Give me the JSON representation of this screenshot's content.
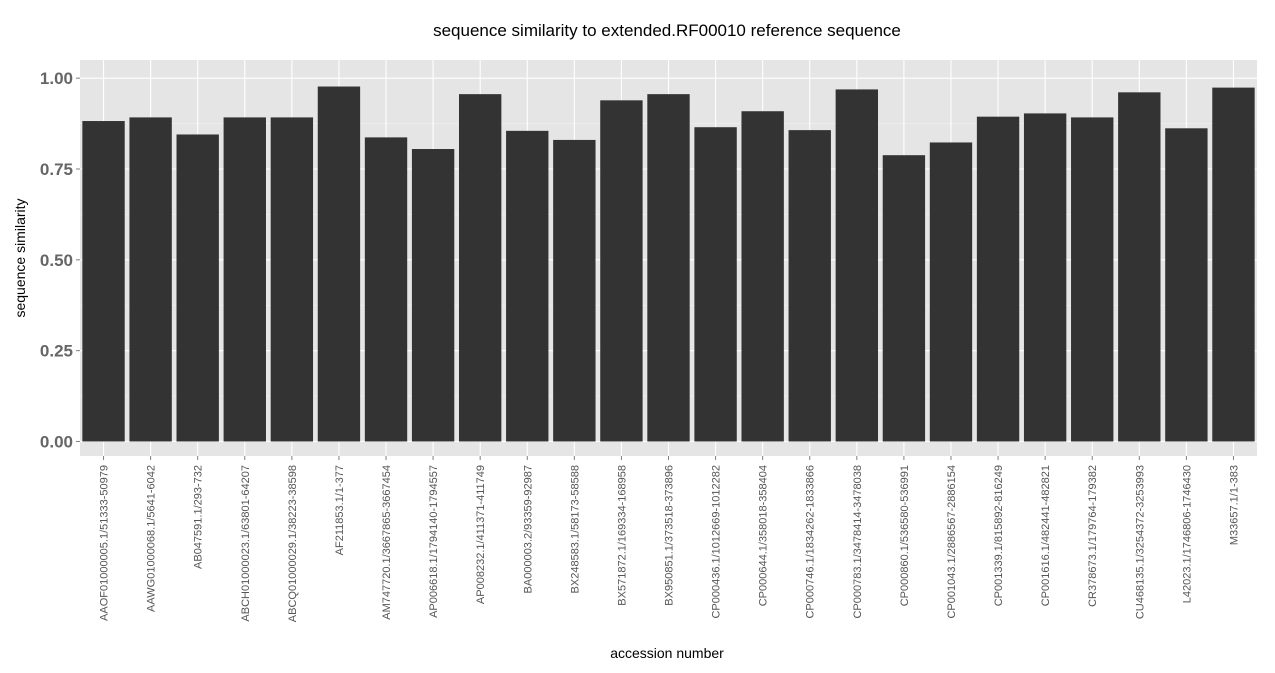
{
  "chart_data": {
    "type": "bar",
    "title": "sequence similarity to extended.RF00010 reference sequence",
    "xlabel": "accession number",
    "ylabel": "sequence similarity",
    "ylim": [
      -0.04,
      1.05
    ],
    "yticks": [
      "0.00",
      "0.25",
      "0.50",
      "0.75",
      "1.00"
    ],
    "grid": true,
    "colors": {
      "panel": "#e5e5e5",
      "grid": "#ffffff",
      "bar": "#333333"
    },
    "categories": [
      "AAOF01000005.1/51333-50979",
      "AAWG01000068.1/5641-6042",
      "AB047591.1/293-732",
      "ABCH01000023.1/63801-64207",
      "ABCQ01000029.1/38223-38598",
      "AF211853.1/1-377",
      "AM747720.1/3667865-3667454",
      "AP006618.1/1794140-1794557",
      "AP008232.1/411371-411749",
      "BA000003.2/93359-92987",
      "BX248583.1/58173-58588",
      "BX571872.1/169334-168958",
      "BX950851.1/373518-373896",
      "CP000436.1/1012669-1012282",
      "CP000644.1/358018-358404",
      "CP000746.1/1834262-1833866",
      "CP000783.1/3478414-3478038",
      "CP000860.1/536580-536991",
      "CP001043.1/2886567-2886154",
      "CP001339.1/815892-816249",
      "CP001616.1/482441-482821",
      "CR378673.1/179764-179382",
      "CU468135.1/3254372-3253993",
      "L42023.1/1746806-1746430",
      "M33657.1/1-383"
    ],
    "values": [
      0.882,
      0.892,
      0.845,
      0.892,
      0.892,
      0.977,
      0.837,
      0.805,
      0.956,
      0.855,
      0.83,
      0.939,
      0.956,
      0.865,
      0.909,
      0.857,
      0.969,
      0.788,
      0.823,
      0.894,
      0.903,
      0.892,
      0.961,
      0.862,
      0.974
    ]
  }
}
